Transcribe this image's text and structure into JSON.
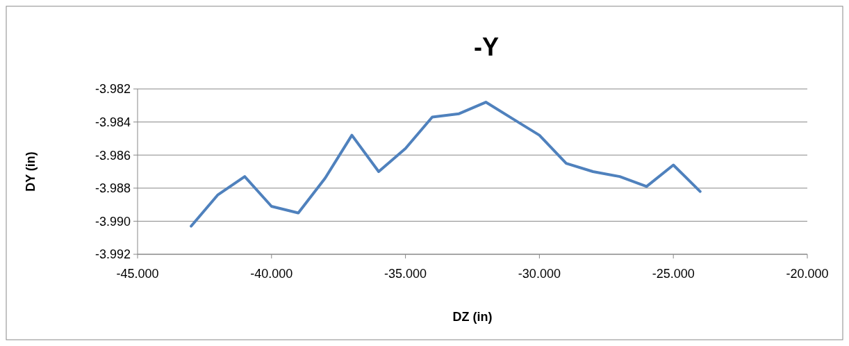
{
  "chart_data": {
    "type": "line",
    "title": "-Y",
    "xlabel": "DZ (in)",
    "ylabel": "DY (in)",
    "x": [
      -43,
      -42,
      -41,
      -40,
      -39,
      -38,
      -37,
      -36,
      -35,
      -34,
      -33,
      -32,
      -31,
      -30,
      -29,
      -28,
      -27,
      -26,
      -25,
      -24
    ],
    "series": [
      {
        "color": "#4f81bd",
        "values": [
          -3.9903,
          -3.9884,
          -3.9873,
          -3.9891,
          -3.9895,
          -3.9874,
          -3.9848,
          -3.987,
          -3.9856,
          -3.9837,
          -3.9835,
          -3.9828,
          -3.9838,
          -3.9848,
          -3.9865,
          -3.987,
          -3.9873,
          -3.9879,
          -3.9866,
          -3.9882
        ]
      }
    ],
    "xlim": [
      -45,
      -20
    ],
    "xticks": [
      {
        "value": -45,
        "label": "-45.000"
      },
      {
        "value": -40,
        "label": "-40.000"
      },
      {
        "value": -35,
        "label": "-35.000"
      },
      {
        "value": -30,
        "label": "-30.000"
      },
      {
        "value": -25,
        "label": "-25.000"
      },
      {
        "value": -20,
        "label": "-20.000"
      }
    ],
    "ylim": [
      -3.992,
      -3.982
    ],
    "yticks": [
      {
        "value": -3.992,
        "label": "-3.992"
      },
      {
        "value": -3.99,
        "label": "-3.990"
      },
      {
        "value": -3.988,
        "label": "-3.988"
      },
      {
        "value": -3.986,
        "label": "-3.986"
      },
      {
        "value": -3.984,
        "label": "-3.984"
      },
      {
        "value": -3.982,
        "label": "-3.982"
      }
    ],
    "grid": "y",
    "marker": "none",
    "line_style": "solid"
  }
}
